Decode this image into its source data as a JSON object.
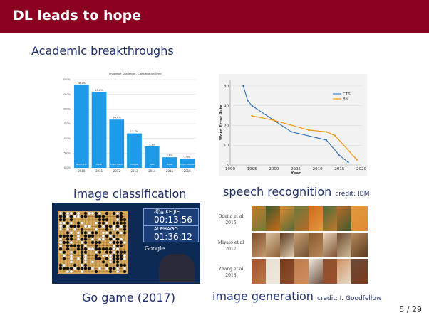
{
  "slide": {
    "title": "DL leads to hope",
    "subtitle": "Academic breakthroughs",
    "page": "5 / 29"
  },
  "captions": {
    "image_classification": "image classification",
    "speech_recognition": "speech recognition",
    "speech_credit": "credit: IBM",
    "go_game": "Go game (2017)",
    "image_generation": "image generation",
    "generation_credit": "credit: I. Goodfellow"
  },
  "go": {
    "player1_name": "柯洁 KE JIE",
    "player1_time": "00:13:56",
    "player2_name": "ALPHAGO",
    "player2_time": "01:36:12",
    "brand": "Google"
  },
  "generation": {
    "rows": [
      {
        "label1": "Odena et al",
        "label2": "2016"
      },
      {
        "label1": "Miyato et al",
        "label2": "2017"
      },
      {
        "label1": "Zhang et al",
        "label2": "2018"
      }
    ]
  },
  "chart_data": [
    {
      "type": "bar",
      "title": "ImageNet Challenge - Classification Error",
      "categories": [
        "2010",
        "2011",
        "2012",
        "2013",
        "2014",
        "2015",
        "2016"
      ],
      "bar_labels": [
        "NEC-UIUC",
        "XRCE",
        "SuperVision",
        "Clarifai",
        "VGG",
        "MSRA",
        "Trimps-Soushen"
      ],
      "values": [
        28.2,
        25.8,
        16.4,
        11.7,
        7.3,
        3.6,
        3.0
      ],
      "value_labels": [
        "28.2%",
        "25.8%",
        "16.4%",
        "11.7%",
        "7.3%",
        "3.6%",
        "3.0%"
      ],
      "yticks": [
        "0.0%",
        "5.0%",
        "10.0%",
        "15.0%",
        "20.0%",
        "25.0%",
        "30.0%"
      ],
      "ylim": [
        0,
        30
      ],
      "color": "#1e9be8",
      "grid": true
    },
    {
      "type": "line",
      "xlabel": "Year",
      "ylabel": "Word Error Rate",
      "xticks": [
        "1990",
        "1995",
        "2000",
        "2005",
        "2010",
        "2015",
        "2020"
      ],
      "yticks": [
        "5",
        "10",
        "20",
        "40",
        "80"
      ],
      "ylog": true,
      "xlim": [
        1990,
        2020
      ],
      "legend_position": "right",
      "series": [
        {
          "name": "CTS",
          "color": "#2e6fb6",
          "x": [
            1993,
            1994,
            1995,
            2000,
            2004,
            2012,
            2015,
            2017
          ],
          "y": [
            80,
            48,
            40,
            24,
            16,
            12,
            7,
            5.5
          ]
        },
        {
          "name": "BN",
          "color": "#f39200",
          "x": [
            1995,
            2000,
            2008,
            2012,
            2014,
            2019
          ],
          "y": [
            28,
            24,
            17,
            16,
            14,
            6
          ]
        }
      ]
    }
  ]
}
